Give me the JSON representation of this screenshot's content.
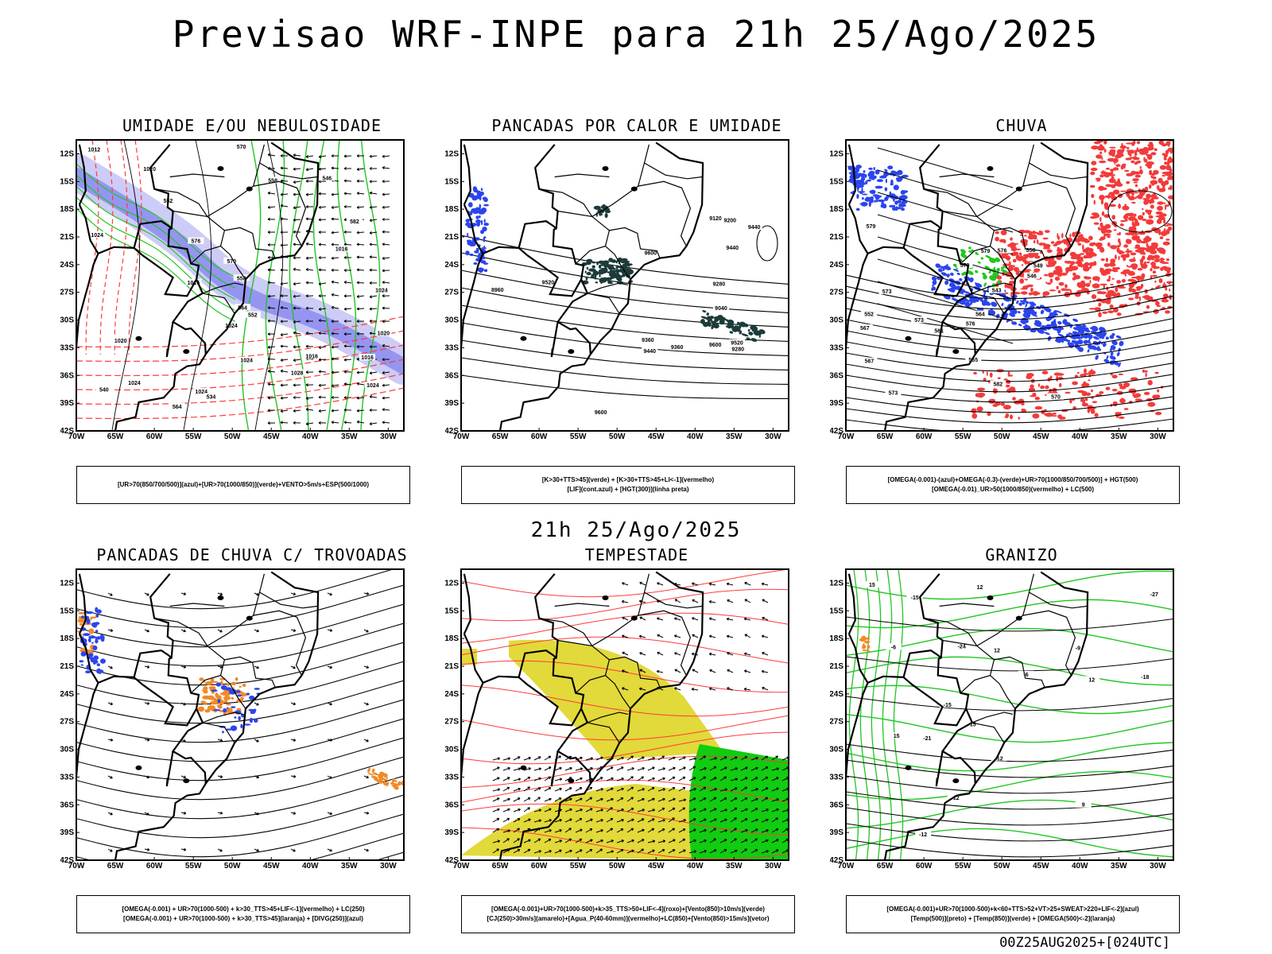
{
  "header": {
    "main_title": "Previsao WRF-INPE  para 21h 25/Ago/2025",
    "middle_title": "21h 25/Ago/2025",
    "footer": "00Z25AUG2025+[024UTC]"
  },
  "axes": {
    "lat_labels": [
      "12S",
      "15S",
      "18S",
      "21S",
      "24S",
      "27S",
      "30S",
      "33S",
      "36S",
      "39S",
      "42S"
    ],
    "lon_labels": [
      "70W",
      "65W",
      "60W",
      "55W",
      "50W",
      "45W",
      "40W",
      "35W",
      "30W"
    ]
  },
  "colors": {
    "humidity_blue": "#8f8ff0",
    "humidity_blue_light": "#c6c6f6",
    "moisture_green": "#22c522",
    "red_contour": "#ff3b3b",
    "dark_teal": "#1d3b3b",
    "rain_red": "#f33a3a",
    "rain_blue": "#2b45ee",
    "orange": "#f08a2a",
    "storm_yellow": "#e2d93a",
    "storm_green": "#11cc11"
  },
  "panels": [
    {
      "id": "umidade",
      "title": "UMIDADE E/OU NEBULOSIDADE",
      "caption_lines": [
        "[UR>70(850/700/500)](azul)+[UR>70(1000/850)](verde)+VENTO>5m/s+ESP(500/1000)"
      ],
      "contour_labels": [
        "1016",
        "1020",
        "1016",
        "1016",
        "1020",
        "1024",
        "1024",
        "1024",
        "1024",
        "1024",
        "1028",
        "1024",
        "1024",
        "1020",
        "1016",
        "1012",
        "570",
        "564",
        "558",
        "552",
        "546",
        "540",
        "534",
        "576",
        "582",
        "570",
        "564",
        "558",
        "552"
      ]
    },
    {
      "id": "pancadas-calor",
      "title": "PANCADAS POR CALOR E UMIDADE",
      "caption_lines": [
        "[K>30+TTS>45](verde) + [K>30+TTS>45+LI<-1](vermelho)",
        "[LIF](cont.azul) + [HGT(300)](linha preta)"
      ],
      "contour_labels": [
        "9600",
        "9520",
        "9440",
        "9440",
        "9520",
        "9600",
        "9440",
        "9600",
        "9360",
        "9360",
        "9280",
        "9200",
        "9120",
        "9040",
        "8960",
        "9280"
      ]
    },
    {
      "id": "chuva",
      "title": "CHUVA",
      "caption_lines": [
        "[OMEGA(-0.001)-(azul)+OMEGA(-0.3)-(verde)+UR>70(1000/850/700/500)] + HGT(500)",
        "[OMEGA(-0.01)_UR>50(1000/850)(vermelho) + LC(500)"
      ],
      "contour_labels": [
        "579",
        "576",
        "582",
        "573",
        "579",
        "576",
        "573",
        "570",
        "567",
        "573",
        "567",
        "564",
        "561",
        "558",
        "555",
        "552",
        "549",
        "546",
        "543",
        "579"
      ]
    },
    {
      "id": "pancadas-trovoadas",
      "title": "PANCADAS DE CHUVA C/ TROVOADAS",
      "caption_lines": [
        "[OMEGA(-0.001) + UR>70(1000-500) + k>30_TTS>45+LIF<-1](vermelho) + LC(250)",
        "[OMEGA(-0.001) + UR>70(1000-500) + k>30_TTS>45](laranja) + [DIVG(250)](azul)"
      ],
      "contour_labels": []
    },
    {
      "id": "tempestade",
      "title": "TEMPESTADE",
      "caption_lines": [
        "[OMEGA(-0.001)+UR>70(1000-500)+k>35_TTS>50+LIF<-4](roxo)+[Vento(850)>10m/s](verde)",
        "[CJ(250)>30m/s](amarelo)+[Agua_P(40-60mm)](vermelho)+LC(850)+[Vento(850)>15m/s](vetor)"
      ],
      "contour_labels": []
    },
    {
      "id": "granizo",
      "title": "GRANIZO",
      "caption_lines": [
        "[OMEGA(-0.001)+UR>70(1000-500)+k<60+TTS>52+VT>25+SWEAT>220+LIF<-2](azul)",
        "[Temp(500)](preto) + [Temp(850)](verde) + [OMEGA(500)<-2](laranja)"
      ],
      "contour_labels": [
        "-6",
        "-12",
        "-15",
        "-12",
        "-15",
        "-12",
        "-18",
        "-21",
        "-24",
        "-27",
        "-9",
        "-6",
        "12",
        "15",
        "15",
        "15",
        "12",
        "12",
        "9"
      ]
    }
  ]
}
